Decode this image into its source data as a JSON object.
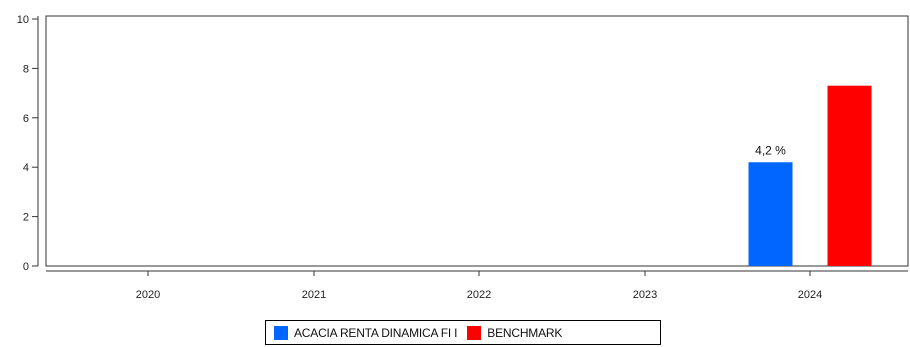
{
  "chart_data": {
    "type": "bar",
    "categories": [
      "2020",
      "2021",
      "2022",
      "2023",
      "2024"
    ],
    "series": [
      {
        "name": "ACACIA RENTA DINAMICA FI I",
        "color": "#0066ff",
        "values": [
          null,
          null,
          null,
          null,
          4.2
        ],
        "labels": [
          null,
          null,
          null,
          null,
          "4,2 %"
        ]
      },
      {
        "name": "BENCHMARK",
        "color": "#ff0000",
        "values": [
          null,
          null,
          null,
          null,
          7.3
        ],
        "labels": [
          null,
          null,
          null,
          null,
          null
        ]
      }
    ],
    "yticks": [
      "0",
      "2",
      "4",
      "6",
      "8",
      "10"
    ],
    "ylim": [
      0,
      10
    ],
    "grid": false,
    "legend_position": "bottom-center"
  }
}
